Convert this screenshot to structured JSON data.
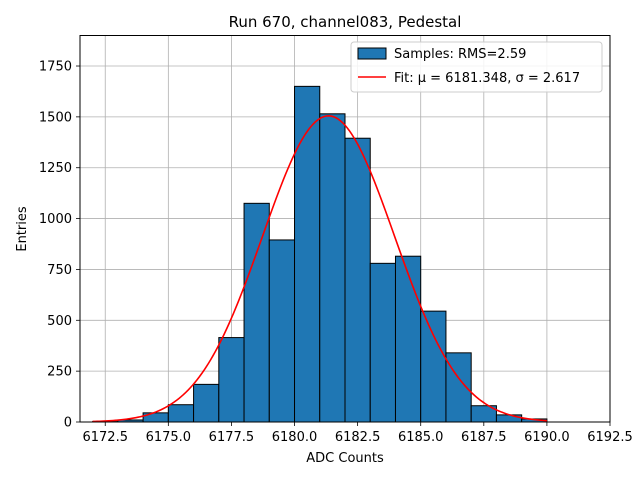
{
  "chart_data": {
    "type": "bar",
    "title": "Run 670, channel083, Pedestal",
    "xlabel": "ADC Counts",
    "ylabel": "Entries",
    "xlim": [
      6171.5,
      6192.5
    ],
    "ylim": [
      0,
      1900
    ],
    "xticks": [
      "6172.5",
      "6175.0",
      "6177.5",
      "6180.0",
      "6182.5",
      "6185.0",
      "6187.5",
      "6190.0",
      "6192.5"
    ],
    "yticks": [
      "0",
      "250",
      "500",
      "750",
      "1000",
      "1250",
      "1500",
      "1750"
    ],
    "grid": true,
    "legend_position": "top-right",
    "histogram": {
      "name": "Samples: RMS=2.59",
      "color": "#1f77b4",
      "bin_edges": [
        6172.0,
        6173.0,
        6174.0,
        6175.0,
        6176.0,
        6177.0,
        6178.0,
        6179.0,
        6180.0,
        6181.0,
        6182.0,
        6183.0,
        6184.0,
        6185.0,
        6186.0,
        6187.0,
        6188.0,
        6189.0,
        6190.0
      ],
      "values": [
        2,
        10,
        45,
        85,
        185,
        415,
        1075,
        895,
        1650,
        1515,
        1395,
        780,
        815,
        545,
        340,
        80,
        35,
        15
      ]
    },
    "fit": {
      "name": "Fit: μ = 6181.348, σ = 2.617",
      "color": "#ff0000",
      "mu": 6181.348,
      "sigma": 2.617,
      "amplitude": 1505,
      "x_range": [
        6172.0,
        6190.0
      ]
    }
  }
}
